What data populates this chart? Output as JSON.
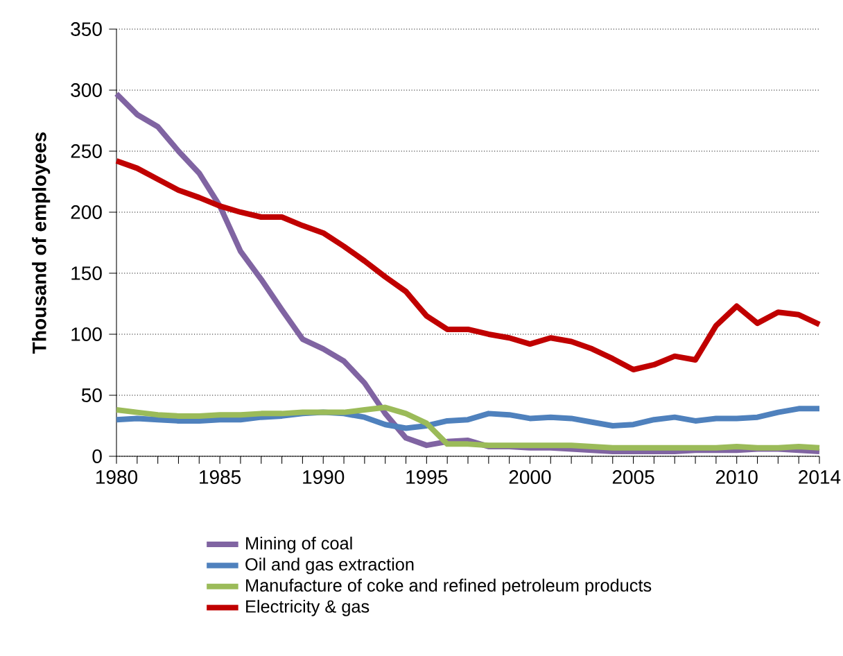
{
  "chart_data": {
    "type": "line",
    "ylabel": "Thousand of employees",
    "x": [
      1980,
      1981,
      1982,
      1983,
      1984,
      1985,
      1986,
      1987,
      1988,
      1989,
      1990,
      1991,
      1992,
      1993,
      1994,
      1995,
      1996,
      1997,
      1998,
      1999,
      2000,
      2001,
      2002,
      2003,
      2004,
      2005,
      2006,
      2007,
      2008,
      2009,
      2010,
      2011,
      2012,
      2013,
      2014
    ],
    "series": [
      {
        "name": "Mining of coal",
        "color": "#8064a2",
        "values": [
          297,
          280,
          270,
          250,
          232,
          205,
          168,
          145,
          120,
          96,
          88,
          78,
          60,
          35,
          15,
          9,
          12,
          13,
          8,
          8,
          7,
          7,
          6,
          5,
          4,
          4,
          4,
          4,
          5,
          5,
          5,
          6,
          6,
          5,
          4
        ]
      },
      {
        "name": "Oil and gas extraction",
        "color": "#4f81bd",
        "values": [
          30,
          31,
          30,
          29,
          29,
          30,
          30,
          32,
          33,
          35,
          36,
          35,
          32,
          26,
          23,
          25,
          29,
          30,
          35,
          34,
          31,
          32,
          31,
          28,
          25,
          26,
          30,
          32,
          29,
          31,
          31,
          32,
          36,
          39,
          39
        ]
      },
      {
        "name": "Manufacture of coke and refined petroleum products",
        "color": "#9bbb59",
        "values": [
          38,
          36,
          34,
          33,
          33,
          34,
          34,
          35,
          35,
          36,
          36,
          36,
          38,
          40,
          35,
          27,
          10,
          10,
          9,
          9,
          9,
          9,
          9,
          8,
          7,
          7,
          7,
          7,
          7,
          7,
          8,
          7,
          7,
          8,
          7
        ]
      },
      {
        "name": "Electricity & gas",
        "color": "#c00000",
        "values": [
          242,
          236,
          227,
          218,
          212,
          205,
          200,
          196,
          196,
          189,
          183,
          172,
          160,
          147,
          135,
          115,
          104,
          104,
          100,
          97,
          92,
          97,
          94,
          88,
          80,
          71,
          75,
          82,
          79,
          107,
          123,
          109,
          118,
          116,
          108
        ]
      }
    ],
    "xlim": [
      1980,
      2014
    ],
    "ylim": [
      0,
      350
    ],
    "xticks": [
      1980,
      {
        "value": 1981,
        "label": null
      },
      {
        "value": 1982,
        "label": null
      },
      {
        "value": 1983,
        "label": null
      },
      {
        "value": 1984,
        "label": null
      },
      1985,
      {
        "value": 1986,
        "label": null
      },
      {
        "value": 1987,
        "label": null
      },
      {
        "value": 1988,
        "label": null
      },
      {
        "value": 1989,
        "label": null
      },
      1990,
      {
        "value": 1991,
        "label": null
      },
      {
        "value": 1992,
        "label": null
      },
      {
        "value": 1993,
        "label": null
      },
      {
        "value": 1994,
        "label": null
      },
      1995,
      {
        "value": 1996,
        "label": null
      },
      {
        "value": 1997,
        "label": null
      },
      {
        "value": 1998,
        "label": null
      },
      {
        "value": 1999,
        "label": null
      },
      2000,
      {
        "value": 2001,
        "label": null
      },
      {
        "value": 2002,
        "label": null
      },
      {
        "value": 2003,
        "label": null
      },
      {
        "value": 2004,
        "label": null
      },
      2005,
      {
        "value": 2006,
        "label": null
      },
      {
        "value": 2007,
        "label": null
      },
      {
        "value": 2008,
        "label": null
      },
      {
        "value": 2009,
        "label": null
      },
      2010,
      {
        "value": 2011,
        "label": null
      },
      {
        "value": 2012,
        "label": null
      },
      {
        "value": 2013,
        "label": null
      },
      2014
    ],
    "yticks": [
      0,
      50,
      100,
      150,
      200,
      250,
      300,
      350
    ],
    "grid": "y",
    "legend": "bottom",
    "marker": "none",
    "line_style": "solid"
  }
}
